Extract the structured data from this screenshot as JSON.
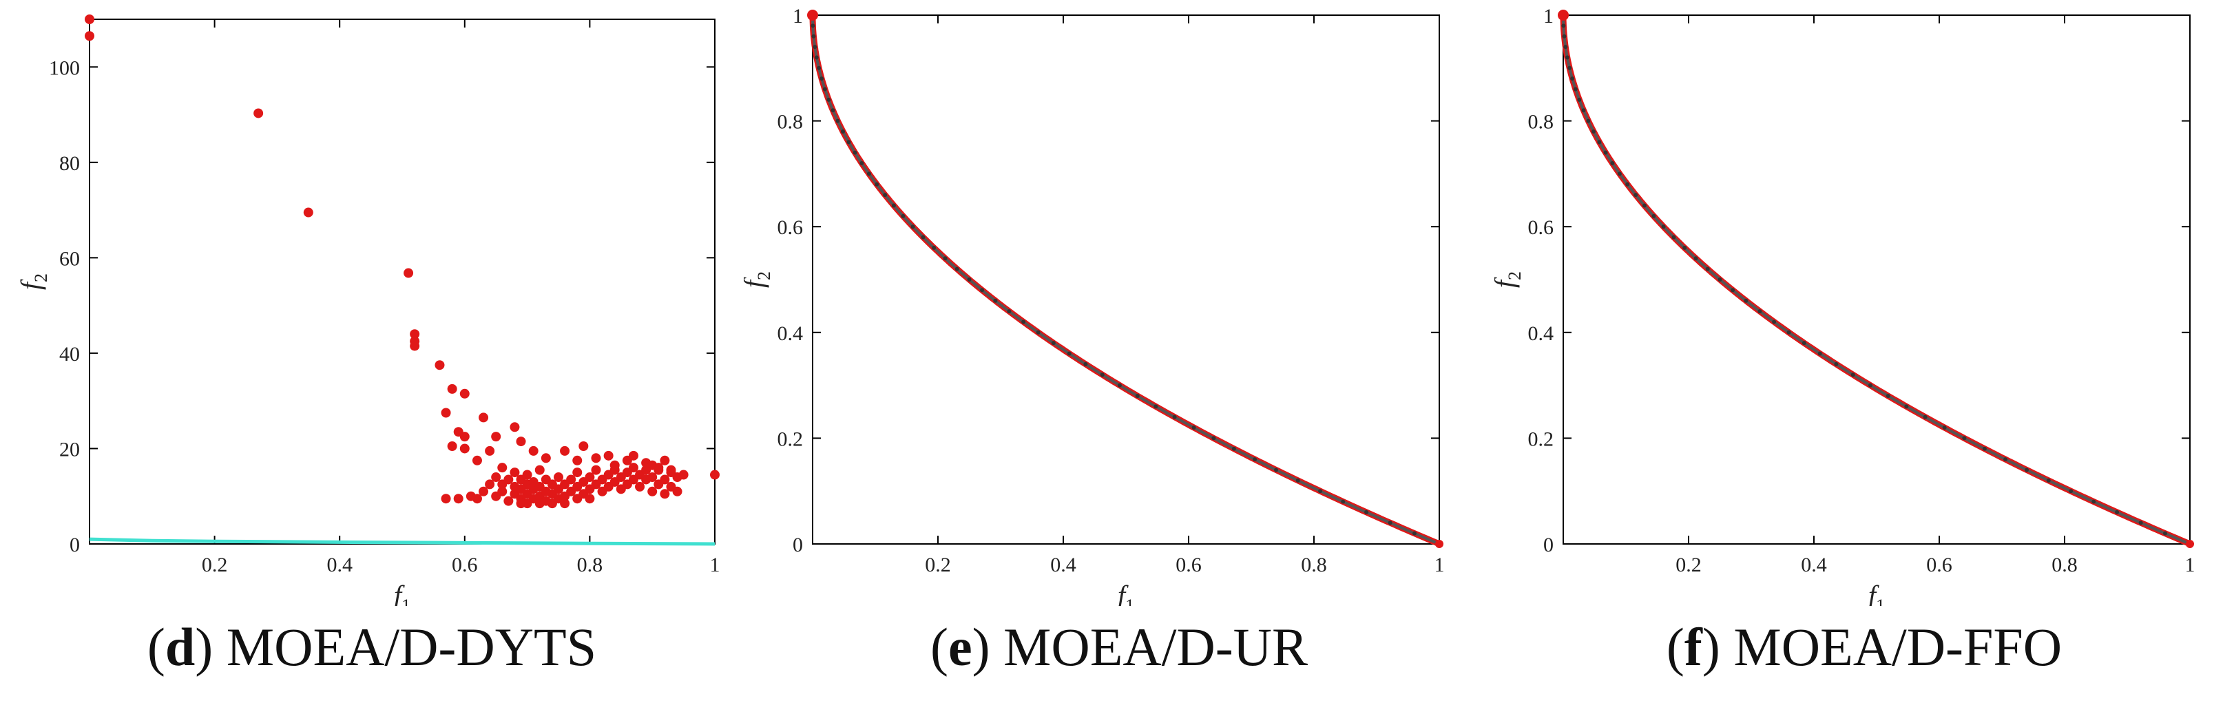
{
  "panels": [
    {
      "caption_letter": "d",
      "caption_text": "MOEA/D-DYTS",
      "xlabel": "f",
      "xlabel_sub": "1",
      "ylabel": "f",
      "ylabel_sub": "2"
    },
    {
      "caption_letter": "e",
      "caption_text": "MOEA/D-UR",
      "xlabel": "f",
      "xlabel_sub": "1",
      "ylabel": "f",
      "ylabel_sub": "2"
    },
    {
      "caption_letter": "f",
      "caption_text": "MOEA/D-FFO",
      "xlabel": "f",
      "xlabel_sub": "1",
      "ylabel": "f",
      "ylabel_sub": "2"
    }
  ],
  "colors": {
    "points": "#e01818",
    "true_front": "#40e0d0",
    "front_line": "#555555",
    "axes": "#000000"
  },
  "chart_data": [
    {
      "type": "scatter",
      "xlim": [
        0,
        1
      ],
      "ylim": [
        0,
        110
      ],
      "xticks": [
        "0.2",
        "0.4",
        "0.6",
        "0.8",
        "1"
      ],
      "xtick_values": [
        0.2,
        0.4,
        0.6,
        0.8,
        1
      ],
      "yticks": [
        "0",
        "20",
        "40",
        "60",
        "80",
        "100"
      ],
      "ytick_values": [
        0,
        20,
        40,
        60,
        80,
        100
      ],
      "series": [
        {
          "marker": "dot",
          "points": [
            [
              0.0,
              110
            ],
            [
              0.0,
              106.5
            ],
            [
              0.27,
              90.3
            ],
            [
              0.35,
              69.5
            ],
            [
              0.51,
              56.8
            ],
            [
              0.52,
              44
            ],
            [
              0.52,
              42.5
            ],
            [
              0.52,
              41.5
            ],
            [
              0.56,
              37.5
            ],
            [
              0.58,
              32.5
            ],
            [
              0.57,
              27.5
            ],
            [
              0.6,
              31.5
            ],
            [
              0.59,
              23.5
            ],
            [
              0.6,
              22.5
            ],
            [
              0.58,
              20.5
            ],
            [
              0.6,
              20
            ],
            [
              0.63,
              26.5
            ],
            [
              0.65,
              22.5
            ],
            [
              0.64,
              19.5
            ],
            [
              0.62,
              17.5
            ],
            [
              0.66,
              16
            ],
            [
              0.68,
              24.5
            ],
            [
              0.69,
              21.5
            ],
            [
              0.71,
              19.5
            ],
            [
              0.73,
              18
            ],
            [
              0.76,
              19.5
            ],
            [
              0.78,
              17.5
            ],
            [
              0.79,
              20.5
            ],
            [
              0.81,
              18
            ],
            [
              0.83,
              18.5
            ],
            [
              0.84,
              16.5
            ],
            [
              0.86,
              17.5
            ],
            [
              0.87,
              18.5
            ],
            [
              0.89,
              17
            ],
            [
              0.9,
              16.5
            ],
            [
              0.91,
              15.5
            ],
            [
              0.92,
              17.5
            ],
            [
              0.93,
              15.5
            ],
            [
              0.95,
              14.5
            ],
            [
              1.0,
              14.5
            ],
            [
              0.57,
              9.5
            ],
            [
              0.59,
              9.5
            ],
            [
              0.61,
              10
            ],
            [
              0.62,
              9.5
            ],
            [
              0.63,
              11
            ],
            [
              0.64,
              12.5
            ],
            [
              0.65,
              10
            ],
            [
              0.65,
              14
            ],
            [
              0.66,
              11
            ],
            [
              0.66,
              12.5
            ],
            [
              0.67,
              9
            ],
            [
              0.67,
              13.5
            ],
            [
              0.68,
              10.5
            ],
            [
              0.68,
              12
            ],
            [
              0.68,
              15
            ],
            [
              0.69,
              9.5
            ],
            [
              0.69,
              11.5
            ],
            [
              0.69,
              13.5
            ],
            [
              0.7,
              8.5
            ],
            [
              0.7,
              10.5
            ],
            [
              0.7,
              12.5
            ],
            [
              0.7,
              14.5
            ],
            [
              0.71,
              9.5
            ],
            [
              0.71,
              11.5
            ],
            [
              0.71,
              13
            ],
            [
              0.72,
              10
            ],
            [
              0.72,
              12
            ],
            [
              0.72,
              15.5
            ],
            [
              0.73,
              9
            ],
            [
              0.73,
              11
            ],
            [
              0.73,
              13.5
            ],
            [
              0.74,
              10.5
            ],
            [
              0.74,
              12.5
            ],
            [
              0.75,
              9.5
            ],
            [
              0.75,
              11.5
            ],
            [
              0.75,
              14
            ],
            [
              0.76,
              10
            ],
            [
              0.76,
              12.5
            ],
            [
              0.77,
              11
            ],
            [
              0.77,
              13.5
            ],
            [
              0.78,
              9.5
            ],
            [
              0.78,
              12
            ],
            [
              0.78,
              15
            ],
            [
              0.79,
              10.5
            ],
            [
              0.79,
              13
            ],
            [
              0.8,
              11.5
            ],
            [
              0.8,
              14
            ],
            [
              0.81,
              12.5
            ],
            [
              0.81,
              15.5
            ],
            [
              0.82,
              11
            ],
            [
              0.82,
              13.5
            ],
            [
              0.83,
              12
            ],
            [
              0.83,
              14.5
            ],
            [
              0.84,
              13
            ],
            [
              0.84,
              15.5
            ],
            [
              0.85,
              11.5
            ],
            [
              0.85,
              14
            ],
            [
              0.86,
              12.5
            ],
            [
              0.86,
              15
            ],
            [
              0.87,
              13.5
            ],
            [
              0.87,
              16
            ],
            [
              0.88,
              12
            ],
            [
              0.88,
              14.5
            ],
            [
              0.89,
              13.5
            ],
            [
              0.89,
              15.5
            ],
            [
              0.9,
              11
            ],
            [
              0.9,
              14
            ],
            [
              0.91,
              12.5
            ],
            [
              0.91,
              16
            ],
            [
              0.92,
              10.5
            ],
            [
              0.92,
              13.5
            ],
            [
              0.93,
              12
            ],
            [
              0.93,
              15
            ],
            [
              0.94,
              11
            ],
            [
              0.94,
              14
            ],
            [
              0.69,
              8.5
            ],
            [
              0.72,
              8.5
            ],
            [
              0.74,
              8.5
            ],
            [
              0.76,
              8.5
            ],
            [
              0.8,
              9.5
            ]
          ]
        },
        {
          "marker": "line",
          "color_key": "true_front",
          "points": [
            [
              0.0,
              1.0
            ],
            [
              0.1,
              0.68
            ],
            [
              0.2,
              0.55
            ],
            [
              0.4,
              0.37
            ],
            [
              0.6,
              0.23
            ],
            [
              0.8,
              0.11
            ],
            [
              1.0,
              0.0
            ]
          ]
        }
      ]
    },
    {
      "type": "scatter",
      "xlim": [
        0,
        1
      ],
      "ylim": [
        0,
        1
      ],
      "xticks": [
        "0.2",
        "0.4",
        "0.6",
        "0.8",
        "1"
      ],
      "xtick_values": [
        0.2,
        0.4,
        0.6,
        0.8,
        1
      ],
      "yticks": [
        "0",
        "0.2",
        "0.4",
        "0.6",
        "0.8",
        "1"
      ],
      "ytick_values": [
        0,
        0.2,
        0.4,
        0.6,
        0.8,
        1
      ],
      "series": [
        {
          "marker": "front",
          "function": "1-sqrt(x)"
        }
      ]
    },
    {
      "type": "scatter",
      "xlim": [
        0,
        1
      ],
      "ylim": [
        0,
        1
      ],
      "xticks": [
        "0.2",
        "0.4",
        "0.6",
        "0.8",
        "1"
      ],
      "xtick_values": [
        0.2,
        0.4,
        0.6,
        0.8,
        1
      ],
      "yticks": [
        "0",
        "0.2",
        "0.4",
        "0.6",
        "0.8",
        "1"
      ],
      "ytick_values": [
        0,
        0.2,
        0.4,
        0.6,
        0.8,
        1
      ],
      "series": [
        {
          "marker": "front",
          "function": "1-sqrt(x)"
        }
      ]
    }
  ]
}
